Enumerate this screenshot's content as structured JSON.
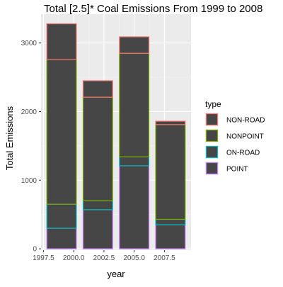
{
  "chart_data": {
    "type": "bar",
    "title": "Total [2.5]* Coal Emissions From 1999 to 2008",
    "xlabel": "year",
    "ylabel": "Total Emissions",
    "categories": [
      "1999",
      "2002",
      "2005",
      "2008"
    ],
    "x": [
      1999,
      2002,
      2005,
      2008
    ],
    "xlim": [
      1997.3,
      2009.7
    ],
    "ylim": [
      -20,
      3420
    ],
    "x_ticks": [
      {
        "value": 1997.5,
        "label": "1997.5"
      },
      {
        "value": 2000.0,
        "label": "2000.0"
      },
      {
        "value": 2002.5,
        "label": "2002.5"
      },
      {
        "value": 2005.0,
        "label": "2005.0"
      },
      {
        "value": 2007.5,
        "label": "2007.5"
      }
    ],
    "y_ticks": [
      {
        "value": 0,
        "label": "0"
      },
      {
        "value": 1000,
        "label": "1000"
      },
      {
        "value": 2000,
        "label": "2000"
      },
      {
        "value": 3000,
        "label": "3000"
      }
    ],
    "stacking": "stacked",
    "bar_fill": "#464646",
    "background": "#ebebeb",
    "grid": true,
    "legend": {
      "title": "type",
      "position": "right"
    },
    "series": [
      {
        "name": "NON-ROAD",
        "color": "#f8766d",
        "values": [
          520,
          240,
          240,
          50
        ]
      },
      {
        "name": "NONPOINT",
        "color": "#7cae00",
        "values": [
          2110,
          1510,
          1510,
          1380
        ]
      },
      {
        "name": "ON-ROAD",
        "color": "#00bfc4",
        "values": [
          350,
          130,
          130,
          80
        ]
      },
      {
        "name": "POINT",
        "color": "#c77cff",
        "values": [
          300,
          570,
          1210,
          350
        ]
      }
    ]
  }
}
